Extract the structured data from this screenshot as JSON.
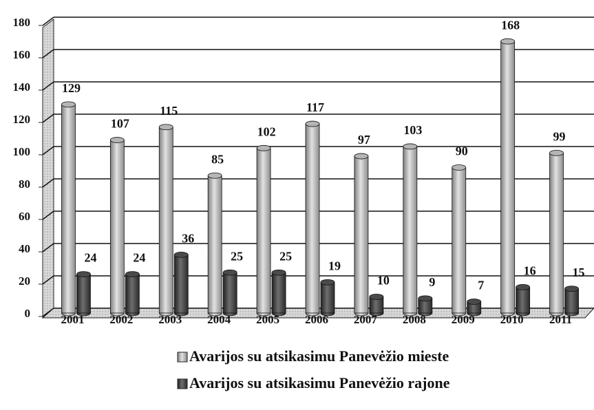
{
  "chart_data": {
    "type": "bar",
    "categories": [
      "2001",
      "2002",
      "2003",
      "2004",
      "2005",
      "2006",
      "2007",
      "2008",
      "2009",
      "2010",
      "2011"
    ],
    "series": [
      {
        "name": "Avarijos su atsikasimu Panevėžio mieste",
        "color": "#b5b5b5",
        "values": [
          129,
          107,
          115,
          85,
          102,
          117,
          97,
          103,
          90,
          168,
          99
        ]
      },
      {
        "name": "Avarijos su atsikasimu Panevėžio rajone",
        "color": "#4a4a4a",
        "values": [
          24,
          24,
          36,
          25,
          25,
          19,
          10,
          9,
          7,
          16,
          15
        ]
      }
    ],
    "ylim": [
      0,
      180
    ],
    "yticks": [
      0,
      20,
      40,
      60,
      80,
      100,
      120,
      140,
      160,
      180
    ],
    "grid": true
  }
}
